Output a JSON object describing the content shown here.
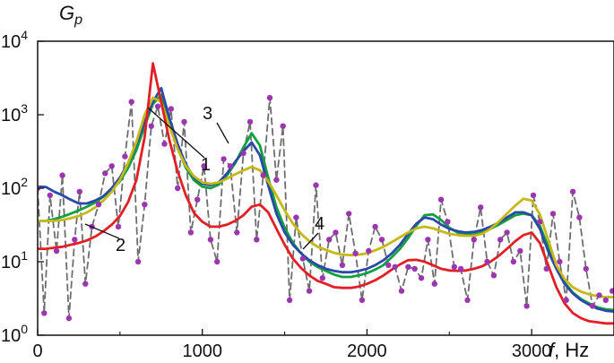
{
  "chart_data": {
    "type": "line",
    "ylabel_main": "G",
    "ylabel_sub": "p",
    "xlabel_var": "f",
    "xlabel_unit": ", Hz",
    "xlim": [
      0,
      3500
    ],
    "ylim": [
      1,
      10000
    ],
    "yscale": "log",
    "grid": false,
    "legend": "none",
    "x_ticks": [
      {
        "value": 0,
        "label": "0"
      },
      {
        "value": 1000,
        "label": "1000"
      },
      {
        "value": 2000,
        "label": "2000"
      },
      {
        "value": 3000,
        "label": "3000"
      }
    ],
    "y_ticks": [
      {
        "value": 1,
        "base": "10",
        "exp": "0"
      },
      {
        "value": 10,
        "base": "10",
        "exp": "1"
      },
      {
        "value": 100,
        "base": "10",
        "exp": "2"
      },
      {
        "value": 1000,
        "base": "10",
        "exp": "3"
      },
      {
        "value": 10000,
        "base": "10",
        "exp": "4"
      }
    ],
    "series": [
      {
        "label": "1",
        "color": "#2b4aa8",
        "style": "solid",
        "label_pos": [
          230,
          190
        ],
        "line_to": [
          165,
          120
        ],
        "x": [
          0,
          50,
          100,
          150,
          200,
          250,
          300,
          350,
          400,
          450,
          500,
          550,
          600,
          650,
          700,
          750,
          800,
          850,
          900,
          950,
          1000,
          1050,
          1100,
          1150,
          1200,
          1250,
          1300,
          1350,
          1400,
          1450,
          1500,
          1550,
          1600,
          1650,
          1700,
          1750,
          1800,
          1850,
          1900,
          1950,
          2000,
          2050,
          2100,
          2150,
          2200,
          2250,
          2300,
          2350,
          2400,
          2450,
          2500,
          2550,
          2600,
          2650,
          2700,
          2750,
          2800,
          2850,
          2900,
          2950,
          3000,
          3050,
          3100,
          3150,
          3200,
          3250,
          3300,
          3350,
          3400,
          3450,
          3500
        ],
        "values": [
          105,
          104,
          90,
          80,
          70,
          62,
          62,
          68,
          78,
          100,
          140,
          220,
          400,
          800,
          1500,
          2300,
          900,
          400,
          210,
          140,
          115,
          110,
          120,
          160,
          230,
          320,
          420,
          280,
          110,
          45,
          25,
          17,
          13,
          10.5,
          9,
          8,
          7.5,
          7.2,
          7.2,
          7.5,
          8,
          9,
          10.5,
          13,
          17,
          24,
          33,
          40,
          38,
          32,
          28,
          26,
          25,
          25.5,
          27,
          30,
          34,
          40,
          47,
          47,
          43,
          28,
          14,
          8,
          5,
          3.7,
          3,
          2.6,
          2.3,
          2.15,
          2.1
        ]
      },
      {
        "label": "2",
        "color": "#e31f26",
        "style": "solid",
        "label_pos": [
          135,
          280
        ],
        "line_to": [
          95,
          250
        ],
        "x": [
          0,
          50,
          100,
          150,
          200,
          250,
          300,
          350,
          400,
          450,
          500,
          550,
          600,
          650,
          700,
          750,
          800,
          850,
          900,
          950,
          1000,
          1050,
          1100,
          1150,
          1200,
          1250,
          1300,
          1350,
          1400,
          1450,
          1500,
          1550,
          1600,
          1650,
          1700,
          1750,
          1800,
          1850,
          1900,
          1950,
          2000,
          2050,
          2100,
          2150,
          2200,
          2250,
          2300,
          2350,
          2400,
          2450,
          2500,
          2550,
          2600,
          2650,
          2700,
          2750,
          2800,
          2850,
          2900,
          2950,
          3000,
          3050,
          3100,
          3150,
          3200,
          3250,
          3300,
          3350,
          3400,
          3450,
          3500
        ],
        "values": [
          15,
          15,
          15.5,
          16,
          17,
          18,
          19.5,
          22,
          26,
          32,
          42,
          65,
          130,
          500,
          5000,
          1500,
          450,
          170,
          80,
          46,
          35,
          30,
          30,
          32,
          36,
          43,
          56,
          60,
          47,
          28,
          17,
          11,
          8.2,
          6.5,
          5.5,
          5,
          4.5,
          4.4,
          4.4,
          4.6,
          5,
          5.6,
          6.5,
          7.8,
          9.2,
          10.5,
          10.6,
          10,
          9,
          8,
          7.6,
          7.5,
          7.6,
          8,
          8.7,
          10,
          12,
          15,
          19,
          23,
          25,
          18,
          9,
          4.5,
          2.7,
          2,
          1.7,
          1.55,
          1.5,
          1.45,
          1.45
        ]
      },
      {
        "label": "3",
        "color": "#10a040",
        "style": "solid",
        "label_pos": [
          232,
          133
        ],
        "line_to": [
          255,
          160
        ],
        "x": [
          0,
          50,
          100,
          150,
          200,
          250,
          300,
          350,
          400,
          450,
          500,
          550,
          600,
          650,
          700,
          750,
          800,
          850,
          900,
          950,
          1000,
          1050,
          1100,
          1150,
          1200,
          1250,
          1300,
          1350,
          1400,
          1450,
          1500,
          1550,
          1600,
          1650,
          1700,
          1750,
          1800,
          1850,
          1900,
          1950,
          2000,
          2050,
          2100,
          2150,
          2200,
          2250,
          2300,
          2350,
          2400,
          2450,
          2500,
          2550,
          2600,
          2650,
          2700,
          2750,
          2800,
          2850,
          2900,
          2950,
          3000,
          3050,
          3100,
          3150,
          3200,
          3250,
          3300,
          3350,
          3400,
          3450,
          3500
        ],
        "values": [
          36,
          36,
          38,
          41,
          45,
          50,
          56,
          64,
          77,
          95,
          125,
          190,
          330,
          700,
          1400,
          1850,
          800,
          350,
          190,
          128,
          105,
          100,
          112,
          150,
          220,
          360,
          560,
          380,
          140,
          55,
          29,
          18,
          13,
          10,
          8.5,
          7.5,
          6.7,
          6.2,
          6.2,
          6.5,
          7,
          7.8,
          9,
          11.5,
          15,
          21,
          31,
          43,
          44,
          37,
          29,
          25,
          23.5,
          23.5,
          25,
          28,
          32,
          37,
          43,
          45,
          43,
          31,
          16,
          8.5,
          5.2,
          3.8,
          3.1,
          2.7,
          2.4,
          2.25,
          2.2
        ]
      },
      {
        "label": "4",
        "color": "#c6b818",
        "style": "solid",
        "label_pos": [
          357,
          256
        ],
        "line_to": [
          338,
          278
        ],
        "x": [
          0,
          50,
          100,
          150,
          200,
          250,
          300,
          350,
          400,
          450,
          500,
          550,
          600,
          650,
          700,
          750,
          800,
          850,
          900,
          950,
          1000,
          1050,
          1100,
          1150,
          1200,
          1250,
          1300,
          1350,
          1400,
          1450,
          1500,
          1550,
          1600,
          1650,
          1700,
          1750,
          1800,
          1850,
          1900,
          1950,
          2000,
          2050,
          2100,
          2150,
          2200,
          2250,
          2300,
          2350,
          2400,
          2450,
          2500,
          2550,
          2600,
          2650,
          2700,
          2750,
          2800,
          2850,
          2900,
          2950,
          3000,
          3050,
          3100,
          3150,
          3200,
          3250,
          3300,
          3350,
          3400,
          3450,
          3500
        ],
        "values": [
          36,
          36,
          36,
          37,
          39,
          42,
          47,
          55,
          68,
          90,
          130,
          220,
          430,
          1000,
          1700,
          1500,
          700,
          340,
          200,
          145,
          120,
          115,
          120,
          135,
          155,
          175,
          195,
          175,
          125,
          80,
          50,
          33,
          24,
          19,
          16,
          14.5,
          13.2,
          12.5,
          12.3,
          12.5,
          13,
          14.3,
          16,
          18.5,
          21.5,
          25,
          28.5,
          30,
          28.5,
          26,
          24,
          23,
          22.5,
          22.5,
          24,
          28,
          35,
          45,
          58,
          72,
          68,
          44,
          20,
          9,
          5.8,
          4.5,
          3.9,
          3.6,
          3.4,
          3.3,
          3.3
        ]
      },
      {
        "label": "",
        "color": "#6e6e6e",
        "style": "dashed",
        "markers": true,
        "marker_color": "#9b35b0",
        "x": [
          0,
          40,
          75,
          115,
          150,
          190,
          225,
          255,
          290,
          330,
          370,
          410,
          450,
          490,
          530,
          570,
          610,
          650,
          690,
          730,
          770,
          810,
          850,
          890,
          930,
          970,
          1010,
          1050,
          1090,
          1130,
          1170,
          1210,
          1250,
          1290,
          1330,
          1370,
          1410,
          1450,
          1490,
          1530,
          1570,
          1610,
          1650,
          1690,
          1730,
          1770,
          1810,
          1850,
          1890,
          1930,
          1970,
          2010,
          2050,
          2090,
          2130,
          2170,
          2210,
          2250,
          2290,
          2330,
          2370,
          2410,
          2450,
          2490,
          2530,
          2570,
          2610,
          2650,
          2690,
          2730,
          2770,
          2810,
          2850,
          2890,
          2930,
          2970,
          3010,
          3050,
          3090,
          3130,
          3170,
          3210,
          3250,
          3290,
          3330,
          3370,
          3410,
          3450,
          3490
        ],
        "values": [
          100,
          2,
          80,
          14,
          150,
          1.7,
          20,
          90,
          5,
          30,
          60,
          160,
          200,
          30,
          270,
          1500,
          10,
          60,
          700,
          1300,
          400,
          1200,
          100,
          800,
          25,
          70,
          200,
          20,
          10,
          250,
          200,
          25,
          300,
          800,
          20,
          150,
          1700,
          130,
          700,
          3,
          40,
          11,
          4,
          110,
          6,
          20,
          25,
          9,
          45,
          13,
          3,
          14,
          30,
          20,
          9,
          8.5,
          4,
          8.5,
          8,
          6,
          20,
          5,
          70,
          35,
          8.5,
          8,
          3,
          20,
          55,
          10,
          6.5,
          20,
          25,
          10,
          14,
          2.5,
          80,
          35,
          8,
          45,
          10,
          3,
          90,
          40,
          8,
          2.5,
          3.5,
          3,
          4
        ]
      }
    ]
  }
}
